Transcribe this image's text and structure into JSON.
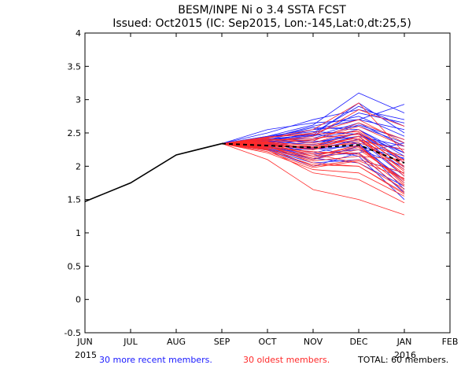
{
  "chart_data": {
    "type": "line",
    "title": "BESM/INPE Ni o 3.4 SSTA FCST",
    "subtitle": "Issued: Oct2015 (IC: Sep2015, Lon:-145,Lat:0,dt:25,5)",
    "x_ticks": [
      "JUN",
      "JUL",
      "AUG",
      "SEP",
      "OCT",
      "NOV",
      "DEC",
      "JAN",
      "FEB"
    ],
    "x_year_start": "2015",
    "x_year_end": "2016",
    "y_ticks": [
      "-0.5",
      "0",
      "0.5",
      "1",
      "1.5",
      "2",
      "2.5",
      "3",
      "3.5",
      "4"
    ],
    "ylim": [
      -0.5,
      4
    ],
    "xlim": [
      0,
      8
    ],
    "observed": {
      "name": "observed",
      "color": "#000000",
      "x": [
        0,
        1,
        2,
        3
      ],
      "values": [
        1.47,
        1.75,
        2.17,
        2.34
      ]
    },
    "ensemble_mean": {
      "name": "ensemble mean",
      "color": "#000000",
      "style": "dashed",
      "x": [
        3,
        4,
        5,
        6,
        7
      ],
      "values": [
        2.34,
        2.31,
        2.28,
        2.32,
        2.05
      ]
    },
    "series_recent": {
      "name": "30 more recent members.",
      "color": "#1a1aff",
      "members": [
        [
          2.34,
          2.4,
          2.55,
          2.7,
          2.93
        ],
        [
          2.34,
          2.45,
          2.62,
          3.1,
          2.8
        ],
        [
          2.34,
          2.38,
          2.5,
          2.9,
          2.6
        ],
        [
          2.34,
          2.42,
          2.6,
          2.75,
          2.45
        ],
        [
          2.34,
          2.36,
          2.45,
          2.65,
          2.3
        ],
        [
          2.34,
          2.5,
          2.7,
          2.85,
          2.7
        ],
        [
          2.34,
          2.33,
          2.4,
          2.55,
          2.2
        ],
        [
          2.34,
          2.4,
          2.35,
          2.5,
          2.1
        ],
        [
          2.34,
          2.3,
          2.3,
          2.45,
          1.95
        ],
        [
          2.34,
          2.28,
          2.25,
          2.4,
          1.85
        ],
        [
          2.34,
          2.45,
          2.55,
          2.6,
          2.35
        ],
        [
          2.34,
          2.35,
          2.2,
          2.35,
          1.75
        ],
        [
          2.34,
          2.3,
          2.15,
          2.2,
          1.6
        ],
        [
          2.34,
          2.38,
          2.32,
          2.5,
          2.05
        ],
        [
          2.34,
          2.26,
          2.1,
          2.3,
          1.8
        ],
        [
          2.34,
          2.4,
          2.48,
          2.4,
          2.25
        ],
        [
          2.34,
          2.55,
          2.65,
          2.7,
          2.55
        ],
        [
          2.34,
          2.32,
          2.28,
          2.15,
          1.5
        ],
        [
          2.34,
          2.25,
          2.05,
          2.1,
          1.9
        ],
        [
          2.34,
          2.37,
          2.42,
          2.62,
          2.4
        ],
        [
          2.34,
          2.43,
          2.58,
          2.55,
          2.15
        ],
        [
          2.34,
          2.29,
          2.18,
          2.25,
          2.0
        ],
        [
          2.34,
          2.31,
          2.36,
          2.45,
          2.3
        ],
        [
          2.34,
          2.39,
          2.46,
          2.8,
          2.65
        ],
        [
          2.34,
          2.27,
          2.12,
          2.05,
          1.7
        ],
        [
          2.34,
          2.44,
          2.52,
          2.48,
          2.2
        ],
        [
          2.34,
          2.24,
          2.0,
          2.2,
          2.35
        ],
        [
          2.34,
          2.35,
          2.38,
          2.35,
          1.65
        ],
        [
          2.34,
          2.41,
          2.47,
          2.95,
          2.5
        ],
        [
          2.34,
          2.33,
          2.26,
          2.3,
          2.12
        ]
      ]
    },
    "series_oldest": {
      "name": "30 oldest members.",
      "color": "#ff2a2a",
      "members": [
        [
          2.34,
          2.1,
          1.65,
          1.5,
          1.27
        ],
        [
          2.34,
          2.25,
          1.9,
          1.8,
          1.45
        ],
        [
          2.34,
          2.3,
          2.05,
          2.0,
          1.6
        ],
        [
          2.34,
          2.28,
          2.15,
          2.3,
          1.75
        ],
        [
          2.34,
          2.35,
          2.25,
          2.45,
          1.85
        ],
        [
          2.34,
          2.32,
          2.2,
          2.2,
          1.7
        ],
        [
          2.34,
          2.4,
          2.35,
          2.55,
          2.05
        ],
        [
          2.34,
          2.27,
          2.0,
          2.1,
          1.9
        ],
        [
          2.34,
          2.38,
          2.45,
          2.85,
          2.6
        ],
        [
          2.34,
          2.42,
          2.55,
          2.95,
          2.2
        ],
        [
          2.34,
          2.3,
          2.3,
          2.4,
          1.95
        ],
        [
          2.34,
          2.2,
          1.95,
          1.9,
          1.55
        ],
        [
          2.34,
          2.36,
          2.4,
          2.6,
          2.3
        ],
        [
          2.34,
          2.33,
          2.28,
          2.35,
          2.15
        ],
        [
          2.34,
          2.29,
          2.1,
          2.25,
          1.8
        ],
        [
          2.34,
          2.37,
          2.3,
          2.5,
          1.98
        ],
        [
          2.34,
          2.31,
          2.18,
          2.05,
          1.66
        ],
        [
          2.34,
          2.43,
          2.5,
          2.7,
          2.35
        ],
        [
          2.34,
          2.26,
          2.08,
          2.15,
          2.1
        ],
        [
          2.34,
          2.34,
          2.33,
          2.42,
          1.88
        ],
        [
          2.34,
          2.39,
          2.42,
          2.48,
          2.0
        ],
        [
          2.34,
          2.24,
          2.02,
          2.0,
          1.58
        ],
        [
          2.34,
          2.35,
          2.15,
          2.32,
          1.72
        ],
        [
          2.34,
          2.41,
          2.38,
          2.65,
          2.4
        ],
        [
          2.34,
          2.28,
          2.22,
          2.18,
          1.62
        ],
        [
          2.34,
          2.32,
          2.25,
          2.38,
          2.25
        ],
        [
          2.34,
          2.3,
          2.12,
          2.28,
          1.78
        ],
        [
          2.34,
          2.44,
          2.48,
          2.52,
          2.08
        ],
        [
          2.34,
          2.22,
          1.98,
          2.08,
          1.82
        ],
        [
          2.34,
          2.36,
          2.27,
          2.45,
          1.92
        ]
      ]
    }
  },
  "footer": {
    "recent_label": "30 more recent members.",
    "oldest_label": "30 oldest members.",
    "total_label": "TOTAL: 60 members."
  }
}
